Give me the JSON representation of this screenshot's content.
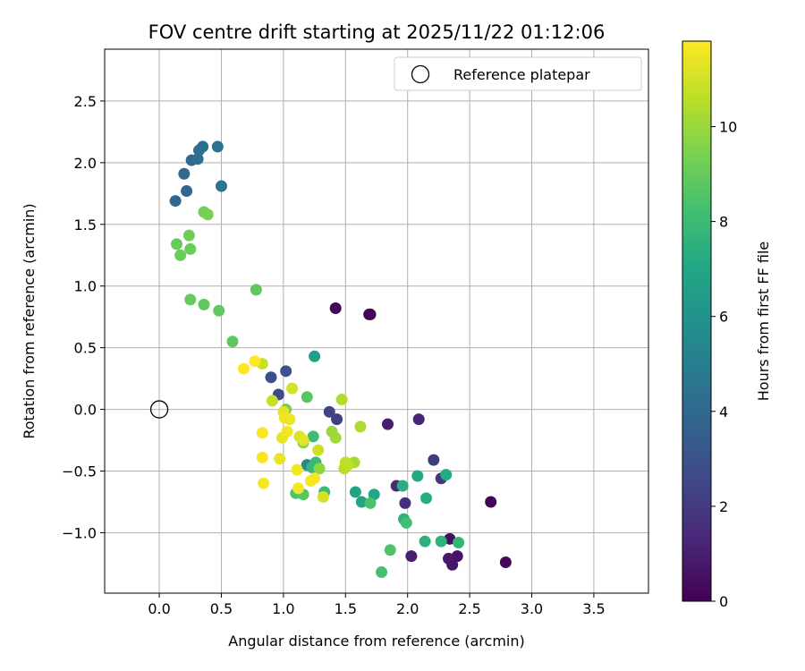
{
  "chart_data": {
    "type": "scatter",
    "title": "FOV centre drift starting at 2025/11/22 01:12:06",
    "xlabel": "Angular distance from reference (arcmin)",
    "ylabel": "Rotation from reference (arcmin)",
    "xlim": [
      -0.44,
      3.94
    ],
    "ylim": [
      -1.49,
      2.92
    ],
    "xticks": [
      0.0,
      0.5,
      1.0,
      1.5,
      2.0,
      2.5,
      3.0,
      3.5
    ],
    "xtick_labels": [
      "0.0",
      "0.5",
      "1.0",
      "1.5",
      "2.0",
      "2.5",
      "3.0",
      "3.5"
    ],
    "yticks": [
      -1.0,
      -0.5,
      0.0,
      0.5,
      1.0,
      1.5,
      2.0,
      2.5
    ],
    "ytick_labels": [
      "−1.0",
      "−0.5",
      "0.0",
      "0.5",
      "1.0",
      "1.5",
      "2.0",
      "2.5"
    ],
    "grid": true,
    "legend": {
      "position": "top-right",
      "entries": [
        "Reference platepar"
      ]
    },
    "reference_point": {
      "x": 0.0,
      "y": 0.0
    },
    "colorbar": {
      "label": "Hours from first FF file",
      "colormap": "viridis",
      "range": [
        0,
        11.8
      ],
      "ticks": [
        0,
        2,
        4,
        6,
        8,
        10
      ],
      "tick_labels": [
        "0",
        "2",
        "4",
        "6",
        "8",
        "10"
      ]
    },
    "points": [
      {
        "x": 1.42,
        "y": 0.82,
        "c": 0.1
      },
      {
        "x": 1.69,
        "y": 0.77,
        "c": 0.1
      },
      {
        "x": 1.7,
        "y": 0.77,
        "c": 0.1
      },
      {
        "x": 2.67,
        "y": -0.75,
        "c": 0.1
      },
      {
        "x": 2.79,
        "y": -1.24,
        "c": 0.2
      },
      {
        "x": 2.34,
        "y": -1.05,
        "c": 0.5
      },
      {
        "x": 2.4,
        "y": -1.19,
        "c": 0.6
      },
      {
        "x": 2.36,
        "y": -1.26,
        "c": 0.7
      },
      {
        "x": 2.33,
        "y": -1.21,
        "c": 0.8
      },
      {
        "x": 2.03,
        "y": -1.19,
        "c": 1.0
      },
      {
        "x": 1.84,
        "y": -0.12,
        "c": 1.0
      },
      {
        "x": 2.09,
        "y": -0.08,
        "c": 1.2
      },
      {
        "x": 1.91,
        "y": -0.62,
        "c": 1.4
      },
      {
        "x": 1.98,
        "y": -0.76,
        "c": 1.6
      },
      {
        "x": 2.27,
        "y": -0.56,
        "c": 1.8
      },
      {
        "x": 2.21,
        "y": -0.41,
        "c": 2.0
      },
      {
        "x": 1.43,
        "y": -0.08,
        "c": 2.2
      },
      {
        "x": 1.37,
        "y": -0.02,
        "c": 2.4
      },
      {
        "x": 0.96,
        "y": 0.12,
        "c": 2.6
      },
      {
        "x": 0.9,
        "y": 0.26,
        "c": 2.8
      },
      {
        "x": 1.02,
        "y": 0.31,
        "c": 3.0
      },
      {
        "x": 0.22,
        "y": 1.77,
        "c": 3.8
      },
      {
        "x": 0.13,
        "y": 1.69,
        "c": 3.9
      },
      {
        "x": 0.2,
        "y": 1.91,
        "c": 4.0
      },
      {
        "x": 0.26,
        "y": 2.02,
        "c": 4.1
      },
      {
        "x": 0.31,
        "y": 2.03,
        "c": 4.2
      },
      {
        "x": 0.32,
        "y": 2.1,
        "c": 4.3
      },
      {
        "x": 0.35,
        "y": 2.13,
        "c": 4.3
      },
      {
        "x": 0.47,
        "y": 2.13,
        "c": 4.4
      },
      {
        "x": 0.5,
        "y": 1.81,
        "c": 4.5
      },
      {
        "x": 1.19,
        "y": -0.45,
        "c": 5.6
      },
      {
        "x": 1.25,
        "y": 0.43,
        "c": 6.6
      },
      {
        "x": 1.58,
        "y": -0.67,
        "c": 6.8
      },
      {
        "x": 1.63,
        "y": -0.75,
        "c": 6.9
      },
      {
        "x": 1.73,
        "y": -0.69,
        "c": 7.0
      },
      {
        "x": 2.08,
        "y": -0.54,
        "c": 7.1
      },
      {
        "x": 2.31,
        "y": -0.53,
        "c": 7.2
      },
      {
        "x": 2.15,
        "y": -0.72,
        "c": 7.3
      },
      {
        "x": 1.96,
        "y": -0.62,
        "c": 7.4
      },
      {
        "x": 1.97,
        "y": -0.89,
        "c": 7.5
      },
      {
        "x": 2.14,
        "y": -1.07,
        "c": 7.5
      },
      {
        "x": 2.27,
        "y": -1.07,
        "c": 7.6
      },
      {
        "x": 2.41,
        "y": -1.08,
        "c": 7.7
      },
      {
        "x": 1.23,
        "y": -0.47,
        "c": 7.8
      },
      {
        "x": 1.26,
        "y": -0.43,
        "c": 7.9
      },
      {
        "x": 1.33,
        "y": -0.67,
        "c": 8.0
      },
      {
        "x": 1.24,
        "y": -0.22,
        "c": 8.1
      },
      {
        "x": 1.99,
        "y": -0.92,
        "c": 8.2
      },
      {
        "x": 1.79,
        "y": -1.32,
        "c": 8.3
      },
      {
        "x": 1.7,
        "y": -0.76,
        "c": 8.4
      },
      {
        "x": 1.86,
        "y": -1.14,
        "c": 8.5
      },
      {
        "x": 1.1,
        "y": -0.68,
        "c": 8.5
      },
      {
        "x": 1.16,
        "y": -0.69,
        "c": 8.6
      },
      {
        "x": 1.19,
        "y": 0.1,
        "c": 8.7
      },
      {
        "x": 0.78,
        "y": 0.97,
        "c": 8.8
      },
      {
        "x": 0.59,
        "y": 0.55,
        "c": 8.8
      },
      {
        "x": 0.48,
        "y": 0.8,
        "c": 8.9
      },
      {
        "x": 0.36,
        "y": 0.85,
        "c": 8.9
      },
      {
        "x": 0.25,
        "y": 0.89,
        "c": 9.0
      },
      {
        "x": 0.14,
        "y": 1.34,
        "c": 9.0
      },
      {
        "x": 0.17,
        "y": 1.25,
        "c": 9.1
      },
      {
        "x": 0.25,
        "y": 1.3,
        "c": 9.1
      },
      {
        "x": 0.24,
        "y": 1.41,
        "c": 9.2
      },
      {
        "x": 0.36,
        "y": 1.6,
        "c": 9.3
      },
      {
        "x": 0.39,
        "y": 1.58,
        "c": 9.4
      },
      {
        "x": 1.02,
        "y": 0.0,
        "c": 9.3
      },
      {
        "x": 1.16,
        "y": -0.27,
        "c": 9.6
      },
      {
        "x": 1.29,
        "y": -0.48,
        "c": 9.8
      },
      {
        "x": 1.39,
        "y": -0.18,
        "c": 10.0
      },
      {
        "x": 1.42,
        "y": -0.23,
        "c": 10.1
      },
      {
        "x": 1.57,
        "y": -0.43,
        "c": 10.2
      },
      {
        "x": 1.62,
        "y": -0.14,
        "c": 10.3
      },
      {
        "x": 1.47,
        "y": 0.08,
        "c": 10.4
      },
      {
        "x": 1.49,
        "y": -0.48,
        "c": 10.5
      },
      {
        "x": 1.5,
        "y": -0.43,
        "c": 10.6
      },
      {
        "x": 1.52,
        "y": -0.45,
        "c": 10.6
      },
      {
        "x": 0.83,
        "y": 0.37,
        "c": 10.8
      },
      {
        "x": 0.91,
        "y": 0.07,
        "c": 10.8
      },
      {
        "x": 1.28,
        "y": -0.33,
        "c": 10.9
      },
      {
        "x": 1.07,
        "y": 0.17,
        "c": 11.0
      },
      {
        "x": 1.32,
        "y": -0.71,
        "c": 11.1
      },
      {
        "x": 1.13,
        "y": -0.22,
        "c": 11.2
      },
      {
        "x": 1.16,
        "y": -0.25,
        "c": 11.3
      },
      {
        "x": 1.0,
        "y": -0.02,
        "c": 11.3
      },
      {
        "x": 0.99,
        "y": -0.23,
        "c": 11.4
      },
      {
        "x": 0.97,
        "y": -0.4,
        "c": 11.4
      },
      {
        "x": 1.01,
        "y": -0.07,
        "c": 11.5
      },
      {
        "x": 1.05,
        "y": -0.08,
        "c": 11.5
      },
      {
        "x": 1.03,
        "y": -0.18,
        "c": 11.6
      },
      {
        "x": 1.11,
        "y": -0.49,
        "c": 11.6
      },
      {
        "x": 1.12,
        "y": -0.64,
        "c": 11.6
      },
      {
        "x": 1.22,
        "y": -0.58,
        "c": 11.7
      },
      {
        "x": 1.25,
        "y": -0.56,
        "c": 11.7
      },
      {
        "x": 0.83,
        "y": -0.19,
        "c": 11.7
      },
      {
        "x": 0.83,
        "y": -0.39,
        "c": 11.7
      },
      {
        "x": 0.84,
        "y": -0.6,
        "c": 11.7
      },
      {
        "x": 0.68,
        "y": 0.33,
        "c": 11.8
      },
      {
        "x": 0.77,
        "y": 0.39,
        "c": 11.8
      }
    ]
  }
}
